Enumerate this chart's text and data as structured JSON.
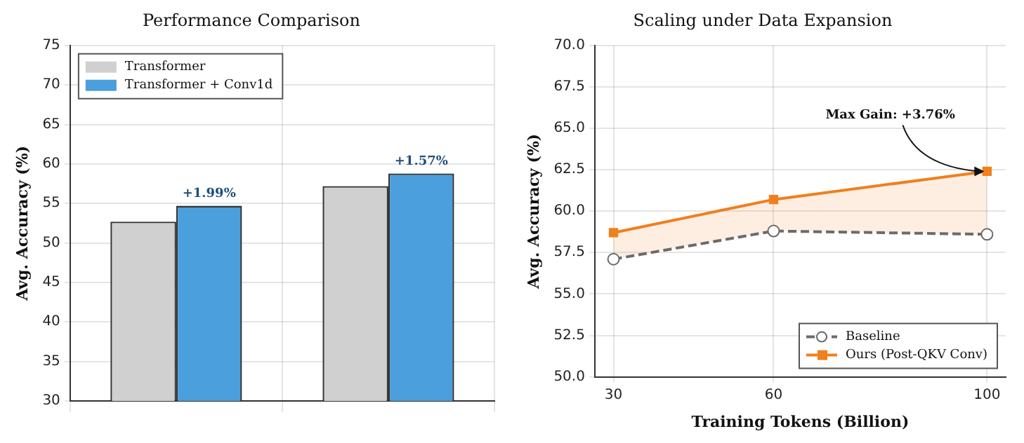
{
  "chart_data": [
    {
      "type": "bar",
      "title": "Performance Comparison",
      "ylabel": "Avg. Accuracy (%)",
      "categories": [
        null,
        null
      ],
      "series": [
        {
          "name": "Transformer",
          "color": "#d0d0d0",
          "values": [
            52.7,
            57.2
          ]
        },
        {
          "name": "Transformer + Conv1d",
          "color": "#4a9fdc",
          "values": [
            54.7,
            58.8
          ]
        }
      ],
      "annotations": [
        {
          "text": "+1.99%",
          "y": 54.7
        },
        {
          "text": "+1.57%",
          "y": 58.8
        }
      ],
      "ylim": [
        30,
        75
      ],
      "yticks": [
        30,
        35,
        40,
        45,
        50,
        55,
        60,
        65,
        70,
        75
      ],
      "grid": true,
      "legend": "top left"
    },
    {
      "type": "line",
      "title": "Scaling under Data Expansion",
      "xlabel": "Training Tokens (Billion)",
      "ylabel": "Avg. Accuracy (%)",
      "x": [
        30,
        60,
        100
      ],
      "series": [
        {
          "name": "Baseline",
          "color": "#6b6b6b",
          "values": [
            57.1,
            58.8,
            58.6
          ],
          "line_style": "dashed",
          "marker": "circle"
        },
        {
          "name": "Ours (Post-QKV Conv)",
          "color": "#f07f1e",
          "values": [
            58.7,
            60.7,
            62.4
          ],
          "marker": "square",
          "lower": [
            57.1,
            58.8,
            58.6
          ],
          "upper": [
            58.7,
            60.7,
            62.4
          ]
        }
      ],
      "xlim": [
        26.5,
        103.5
      ],
      "xticks": [
        30,
        60,
        100
      ],
      "ylim": [
        50,
        70
      ],
      "yticks": [
        {
          "value": 50,
          "label": "50.0"
        },
        {
          "value": 52.5,
          "label": "52.5"
        },
        {
          "value": 55,
          "label": "55.0"
        },
        {
          "value": 57.5,
          "label": "57.5"
        },
        {
          "value": 60,
          "label": "60.0"
        },
        {
          "value": 62.5,
          "label": "62.5"
        },
        {
          "value": 65,
          "label": "65.0"
        },
        {
          "value": 67.5,
          "label": "67.5"
        },
        {
          "value": 70,
          "label": "70.0"
        }
      ],
      "grid": true,
      "legend": "bottom right",
      "annotations": [
        {
          "text": "Max Gain: +3.76%",
          "x": 100,
          "y": 62.4
        }
      ]
    }
  ]
}
